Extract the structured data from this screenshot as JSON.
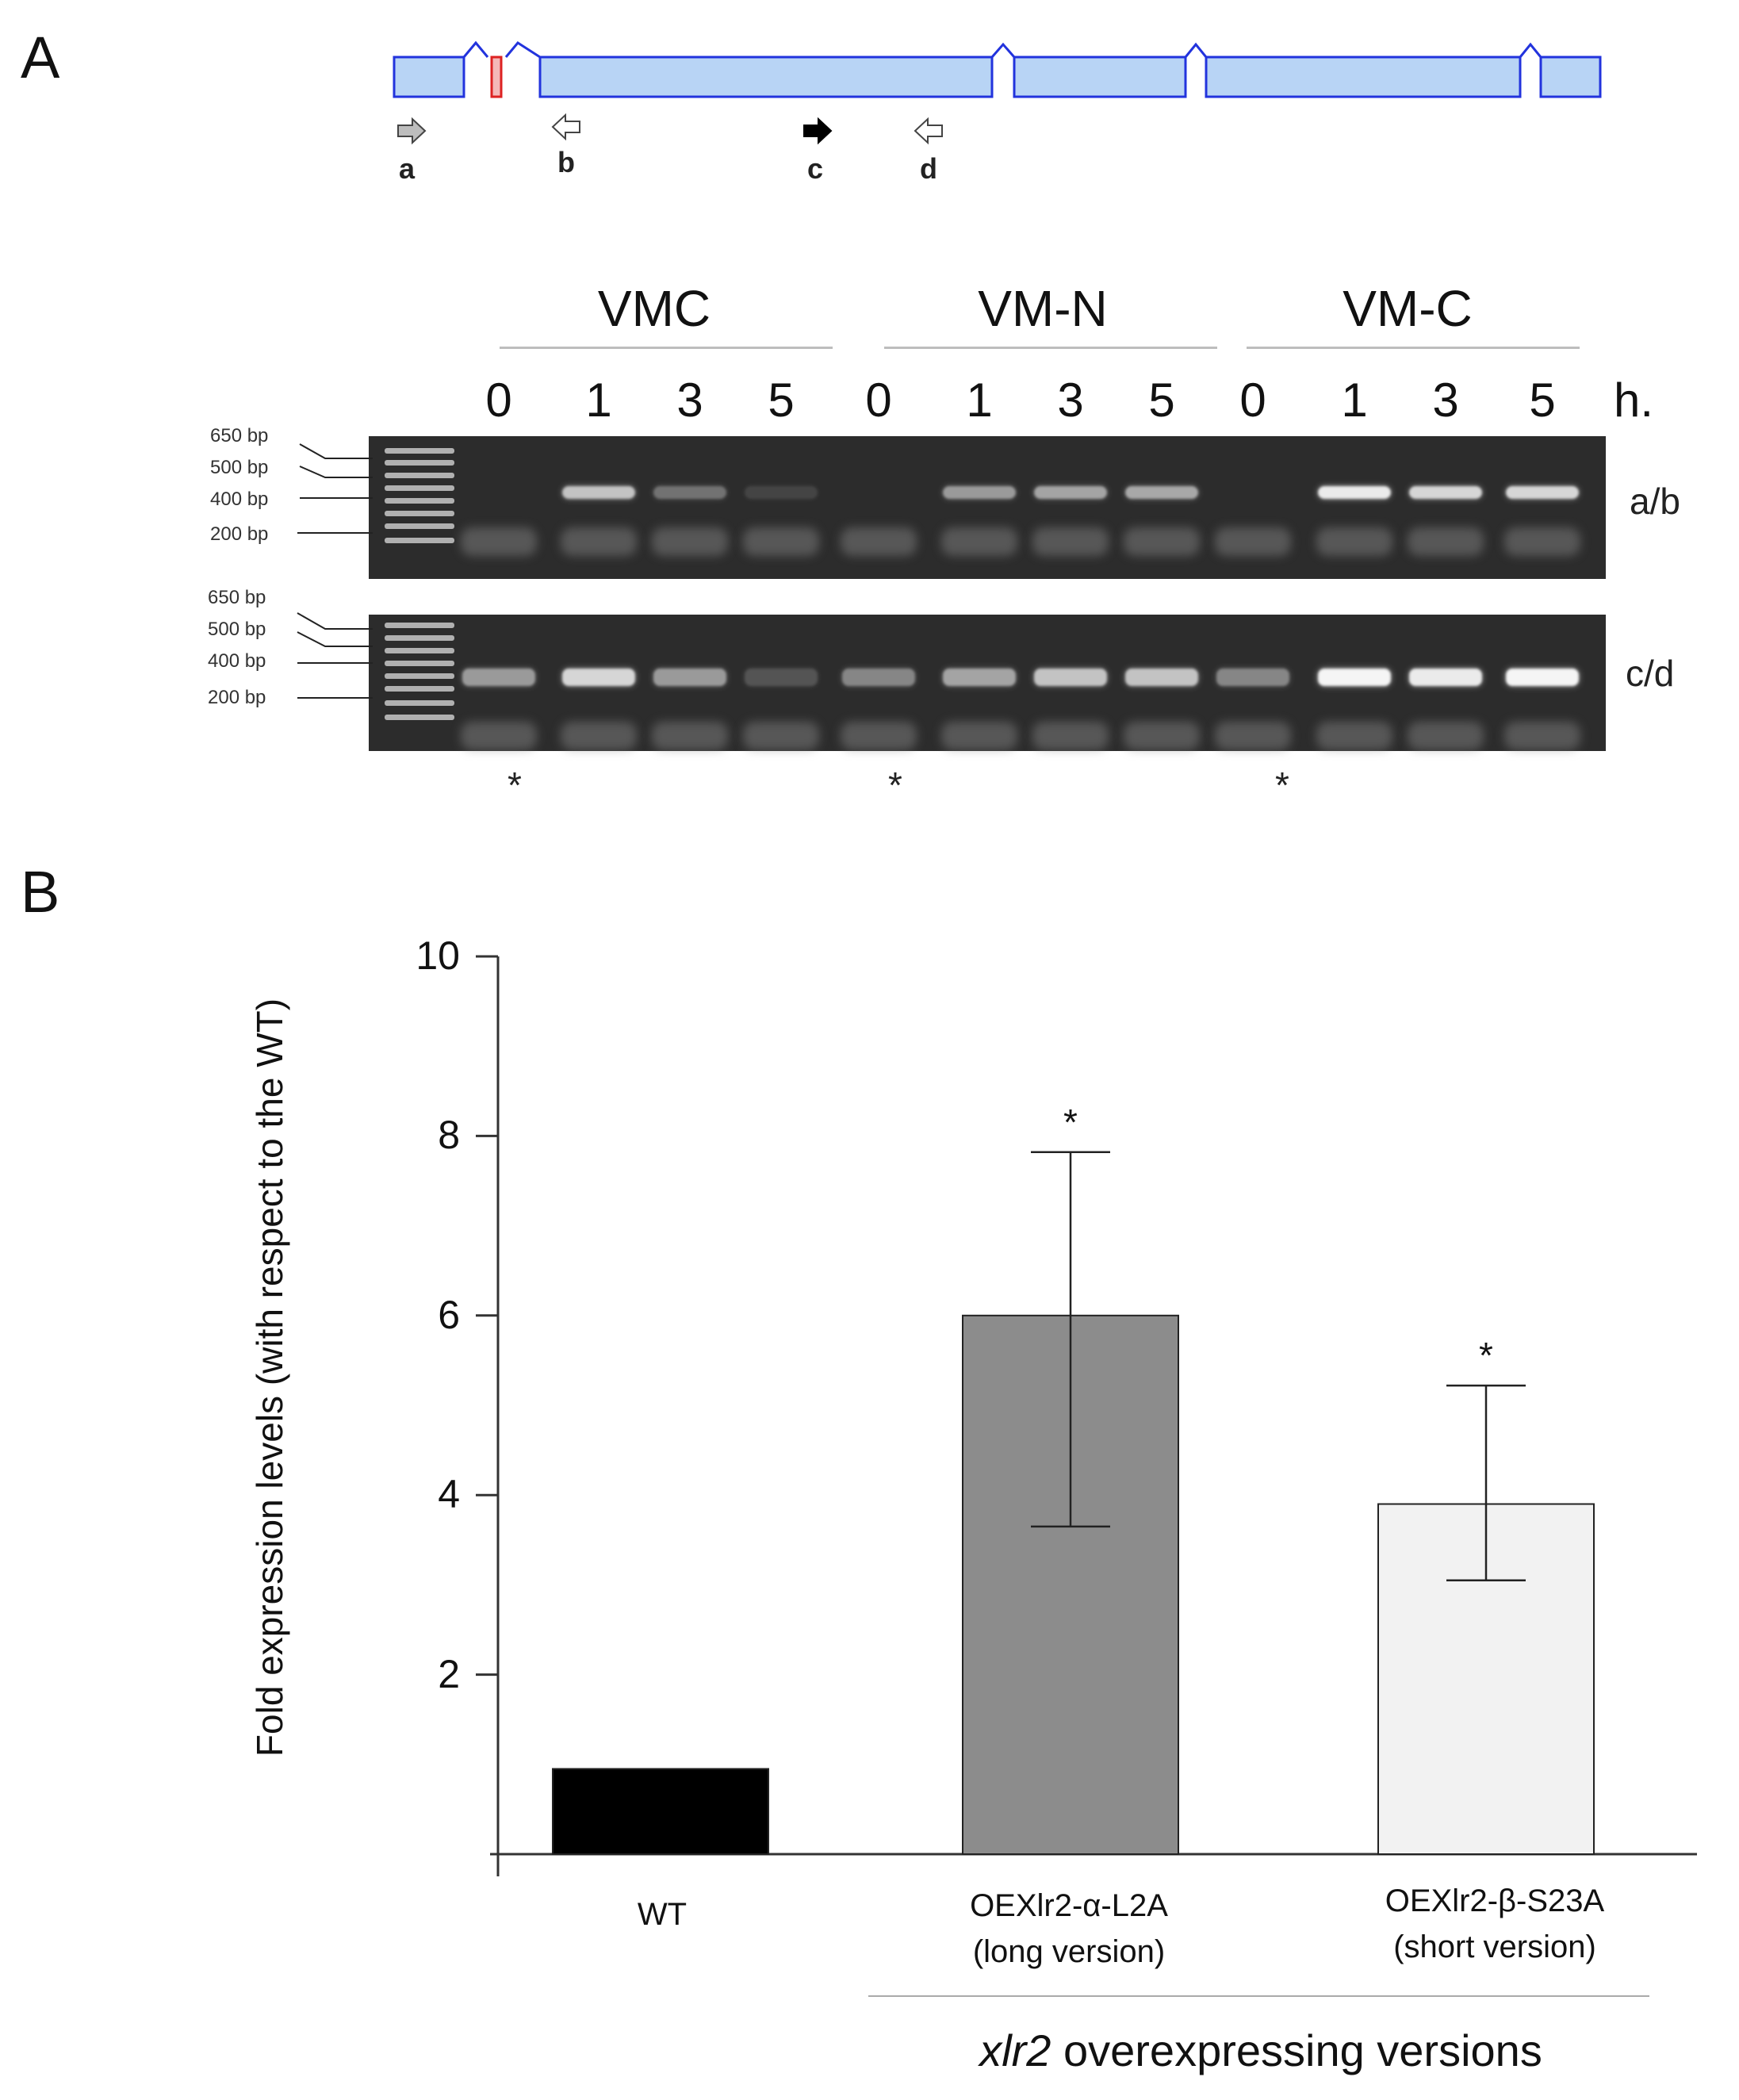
{
  "panels": {
    "a": "A",
    "b": "B"
  },
  "gene": {
    "primers": [
      {
        "label": "a",
        "direction": "forward",
        "filled": false
      },
      {
        "label": "b",
        "direction": "reverse",
        "filled": false
      },
      {
        "label": "c",
        "direction": "forward",
        "filled": true
      },
      {
        "label": "d",
        "direction": "reverse",
        "filled": false
      }
    ],
    "exon_color": "#b8d4f5",
    "exon_border": "#2233dd",
    "intron_marker_color": "#dd2222"
  },
  "gel": {
    "groups": [
      "VMC",
      "VM-N",
      "VM-C"
    ],
    "times": [
      "0",
      "1",
      "3",
      "5",
      "0",
      "1",
      "3",
      "5",
      "0",
      "1",
      "3",
      "5"
    ],
    "time_unit": "h.",
    "ladder_labels": [
      "650 bp",
      "500 bp",
      "400 bp",
      "200 bp"
    ],
    "gel_labels": [
      "a/b",
      "c/d"
    ],
    "band_intensity_ab": [
      0,
      0.75,
      0.35,
      0.12,
      0,
      0.55,
      0.6,
      0.62,
      0,
      0.95,
      0.85,
      0.85
    ],
    "band_intensity_cd": [
      0.55,
      0.85,
      0.55,
      0.2,
      0.45,
      0.6,
      0.75,
      0.75,
      0.45,
      1.0,
      0.95,
      1.0
    ],
    "stars": [
      "*",
      "*",
      "*"
    ]
  },
  "chart_data": {
    "type": "bar",
    "categories": [
      "WT",
      "OEXlr2-α-L2A",
      "OEXlr2-β-S23A"
    ],
    "category_sublabels": [
      "",
      "(long version)",
      "(short version)"
    ],
    "values": [
      0.95,
      6.0,
      3.9
    ],
    "error_upper": [
      null,
      7.82,
      5.22
    ],
    "error_lower": [
      null,
      3.65,
      3.05
    ],
    "significance": [
      "",
      "*",
      "*"
    ],
    "bar_colors": [
      "#000000",
      "#8c8c8c",
      "#f2f2f2"
    ],
    "ylabel": "Fold expression levels (with respect to the WT)",
    "ylim": [
      0,
      10
    ],
    "yticks": [
      2,
      4,
      6,
      8,
      10
    ],
    "group_caption_italic": "xlr2",
    "group_caption_rest": " overexpressing  versions"
  }
}
